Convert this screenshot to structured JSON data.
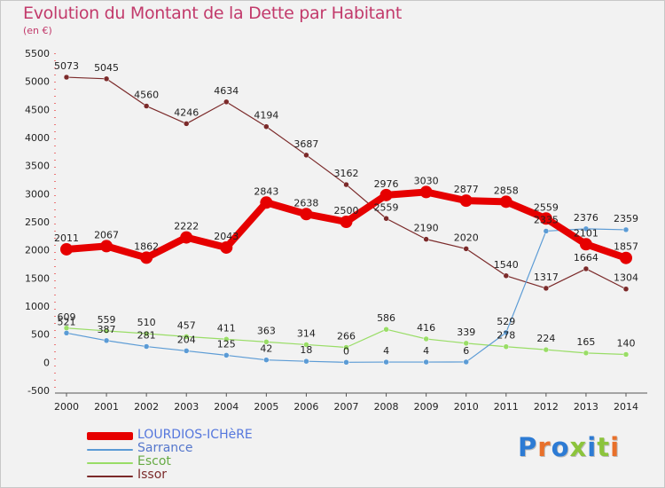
{
  "title": "Evolution du Montant de la Dette par Habitant",
  "subtitle": "(en €)",
  "logo": {
    "text": "Proxiti",
    "letter_colors": [
      "#2d7bd4",
      "#e8702a",
      "#2d7bd4",
      "#8cc43c",
      "#2d7bd4",
      "#8cc43c",
      "#e8702a"
    ]
  },
  "chart_data": {
    "type": "line",
    "x": [
      2000,
      2001,
      2002,
      2003,
      2004,
      2005,
      2006,
      2007,
      2008,
      2009,
      2010,
      2011,
      2012,
      2013,
      2014
    ],
    "ylim": [
      -500,
      5500
    ],
    "yticks": [
      -500,
      0,
      500,
      1000,
      1500,
      2000,
      2500,
      3000,
      3500,
      4000,
      4500,
      5000,
      5500
    ],
    "grid": false,
    "legend_position": "bottom-left",
    "series": [
      {
        "name": "LOURDIOS-ICHèRE",
        "color": "#e60000",
        "emphasis": true,
        "values": [
          2011,
          2067,
          1862,
          2222,
          2043,
          2843,
          2638,
          2500,
          2976,
          3030,
          2877,
          2858,
          2559,
          2101,
          1857
        ]
      },
      {
        "name": "Sarrance",
        "color": "#5b9bd5",
        "values": [
          521,
          387,
          281,
          204,
          125,
          42,
          18,
          0,
          4,
          4,
          6,
          529,
          2335,
          2376,
          2359
        ]
      },
      {
        "name": "Escot",
        "color": "#99dd66",
        "values": [
          609,
          559,
          510,
          457,
          411,
          363,
          314,
          266,
          586,
          416,
          339,
          278,
          224,
          165,
          140
        ]
      },
      {
        "name": "Issor",
        "color": "#7b2a2a",
        "values": [
          5073,
          5045,
          4560,
          4246,
          4634,
          4194,
          3687,
          3162,
          2559,
          2190,
          2020,
          1540,
          1317,
          1664,
          1304
        ]
      }
    ]
  }
}
